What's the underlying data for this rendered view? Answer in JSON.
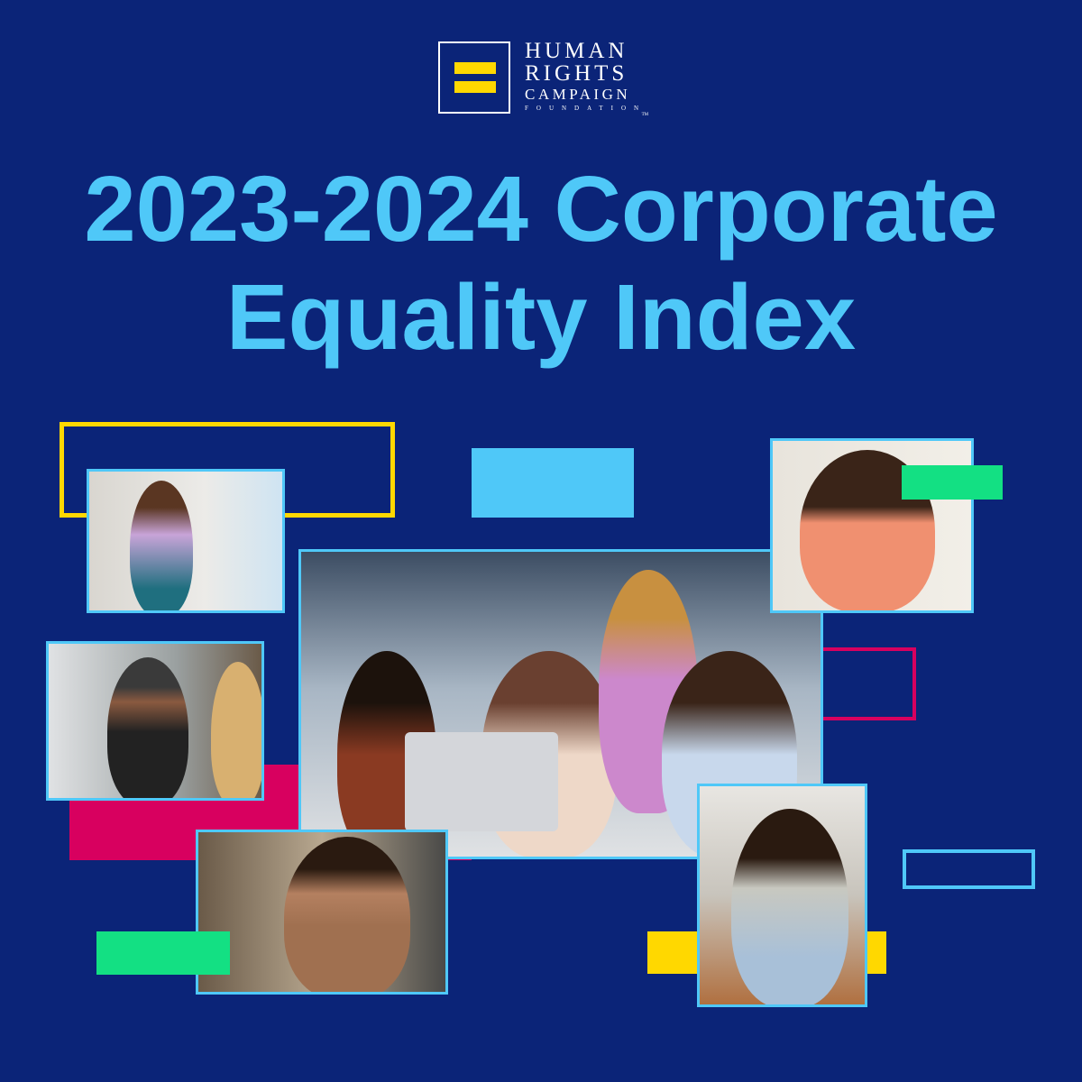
{
  "logo": {
    "name_lines": [
      "HUMAN",
      "RIGHTS",
      "CAMPAIGN"
    ],
    "subtitle": "FOUNDATION",
    "trademark": "TM"
  },
  "title": {
    "line1": "2023-2024 Corporate",
    "line2": "Equality Index"
  },
  "colors": {
    "background": "#0b2478",
    "title": "#4fc8f8",
    "yellow": "#ffd800",
    "green": "#13e083",
    "magenta": "#d8005f",
    "light_blue": "#4fc8f8"
  }
}
